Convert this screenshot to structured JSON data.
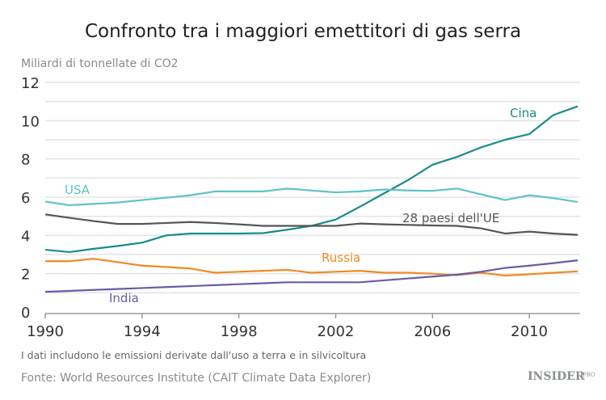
{
  "chart_data": {
    "type": "line",
    "title": "Confronto tra i maggiori emettitori di gas serra",
    "ylabel": "Miliardi di tonnellate di CO2",
    "xlabel": "",
    "xlim": [
      1990,
      2012
    ],
    "ylim": [
      0,
      12
    ],
    "x_ticks": [
      1990,
      1994,
      1998,
      2002,
      2006,
      2010
    ],
    "y_ticks": [
      0,
      2,
      4,
      6,
      8,
      10,
      12
    ],
    "grid": true,
    "x": [
      1990,
      1991,
      1992,
      1993,
      1994,
      1995,
      1996,
      1997,
      1998,
      1999,
      2000,
      2001,
      2002,
      2003,
      2004,
      2005,
      2006,
      2007,
      2008,
      2009,
      2010,
      2011,
      2012
    ],
    "series": [
      {
        "name": "Cina",
        "color": "#1a8a8a",
        "values": [
          3.25,
          3.13,
          3.3,
          3.45,
          3.62,
          4.0,
          4.1,
          4.1,
          4.1,
          4.12,
          4.3,
          4.5,
          4.83,
          5.5,
          6.2,
          6.9,
          7.7,
          8.1,
          8.6,
          9.0,
          9.3,
          10.3,
          10.75
        ]
      },
      {
        "name": "USA",
        "color": "#5fc2c8",
        "values": [
          5.77,
          5.58,
          5.65,
          5.72,
          5.85,
          5.97,
          6.1,
          6.3,
          6.3,
          6.3,
          6.45,
          6.35,
          6.25,
          6.3,
          6.4,
          6.35,
          6.33,
          6.45,
          6.15,
          5.85,
          6.1,
          5.95,
          5.75
        ]
      },
      {
        "name": "28 paesi dell'UE",
        "color": "#555555",
        "values": [
          5.1,
          4.92,
          4.75,
          4.6,
          4.6,
          4.65,
          4.7,
          4.65,
          4.58,
          4.5,
          4.5,
          4.5,
          4.5,
          4.62,
          4.58,
          4.55,
          4.52,
          4.5,
          4.37,
          4.1,
          4.2,
          4.1,
          4.03
        ]
      },
      {
        "name": "Russia",
        "color": "#f08a24",
        "values": [
          2.65,
          2.65,
          2.78,
          2.6,
          2.42,
          2.35,
          2.27,
          2.05,
          2.1,
          2.15,
          2.2,
          2.05,
          2.1,
          2.15,
          2.05,
          2.05,
          2.0,
          1.92,
          2.05,
          1.9,
          1.97,
          2.05,
          2.12
        ]
      },
      {
        "name": "India",
        "color": "#6a5aa8",
        "values": [
          1.05,
          1.1,
          1.15,
          1.2,
          1.25,
          1.3,
          1.35,
          1.4,
          1.45,
          1.5,
          1.55,
          1.55,
          1.55,
          1.55,
          1.65,
          1.75,
          1.85,
          1.95,
          2.1,
          2.3,
          2.42,
          2.55,
          2.7
        ]
      }
    ],
    "note": "I dati includono le emissioni derivate dall'uso a terra e in silvicoltura",
    "source": "Fonte: World Resources Institute (CAIT Climate Data Explorer)"
  },
  "logo": {
    "text": "INSIDER",
    "sup": "PRO"
  }
}
